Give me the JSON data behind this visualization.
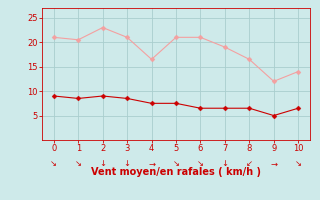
{
  "x": [
    0,
    1,
    2,
    3,
    4,
    5,
    6,
    7,
    8,
    9,
    10
  ],
  "rafales": [
    21.0,
    20.5,
    23.0,
    21.0,
    16.5,
    21.0,
    21.0,
    19.0,
    16.5,
    12.0,
    14.0
  ],
  "moyen": [
    9.0,
    8.5,
    9.0,
    8.5,
    7.5,
    7.5,
    6.5,
    6.5,
    6.5,
    5.0,
    6.5
  ],
  "line_color_rafales": "#f4a0a0",
  "line_color_moyen": "#cc0000",
  "bg_color": "#ceeaea",
  "grid_color": "#aacece",
  "xlabel": "Vent moyen/en rafales ( km/h )",
  "xlabel_color": "#cc0000",
  "tick_color": "#cc0000",
  "spine_color": "#cc0000",
  "ylim": [
    0,
    27
  ],
  "xlim": [
    -0.5,
    10.5
  ],
  "yticks": [
    5,
    10,
    15,
    20,
    25
  ],
  "xticks": [
    0,
    1,
    2,
    3,
    4,
    5,
    6,
    7,
    8,
    9,
    10
  ],
  "wind_arrows": [
    "↘",
    "↘",
    "↓",
    "↓",
    "→",
    "↘",
    "↘",
    "↓",
    "↙",
    "→",
    "↘"
  ],
  "tick_fontsize": 6,
  "xlabel_fontsize": 7,
  "arrow_fontsize": 6,
  "linewidth": 0.8,
  "markersize": 2.5
}
